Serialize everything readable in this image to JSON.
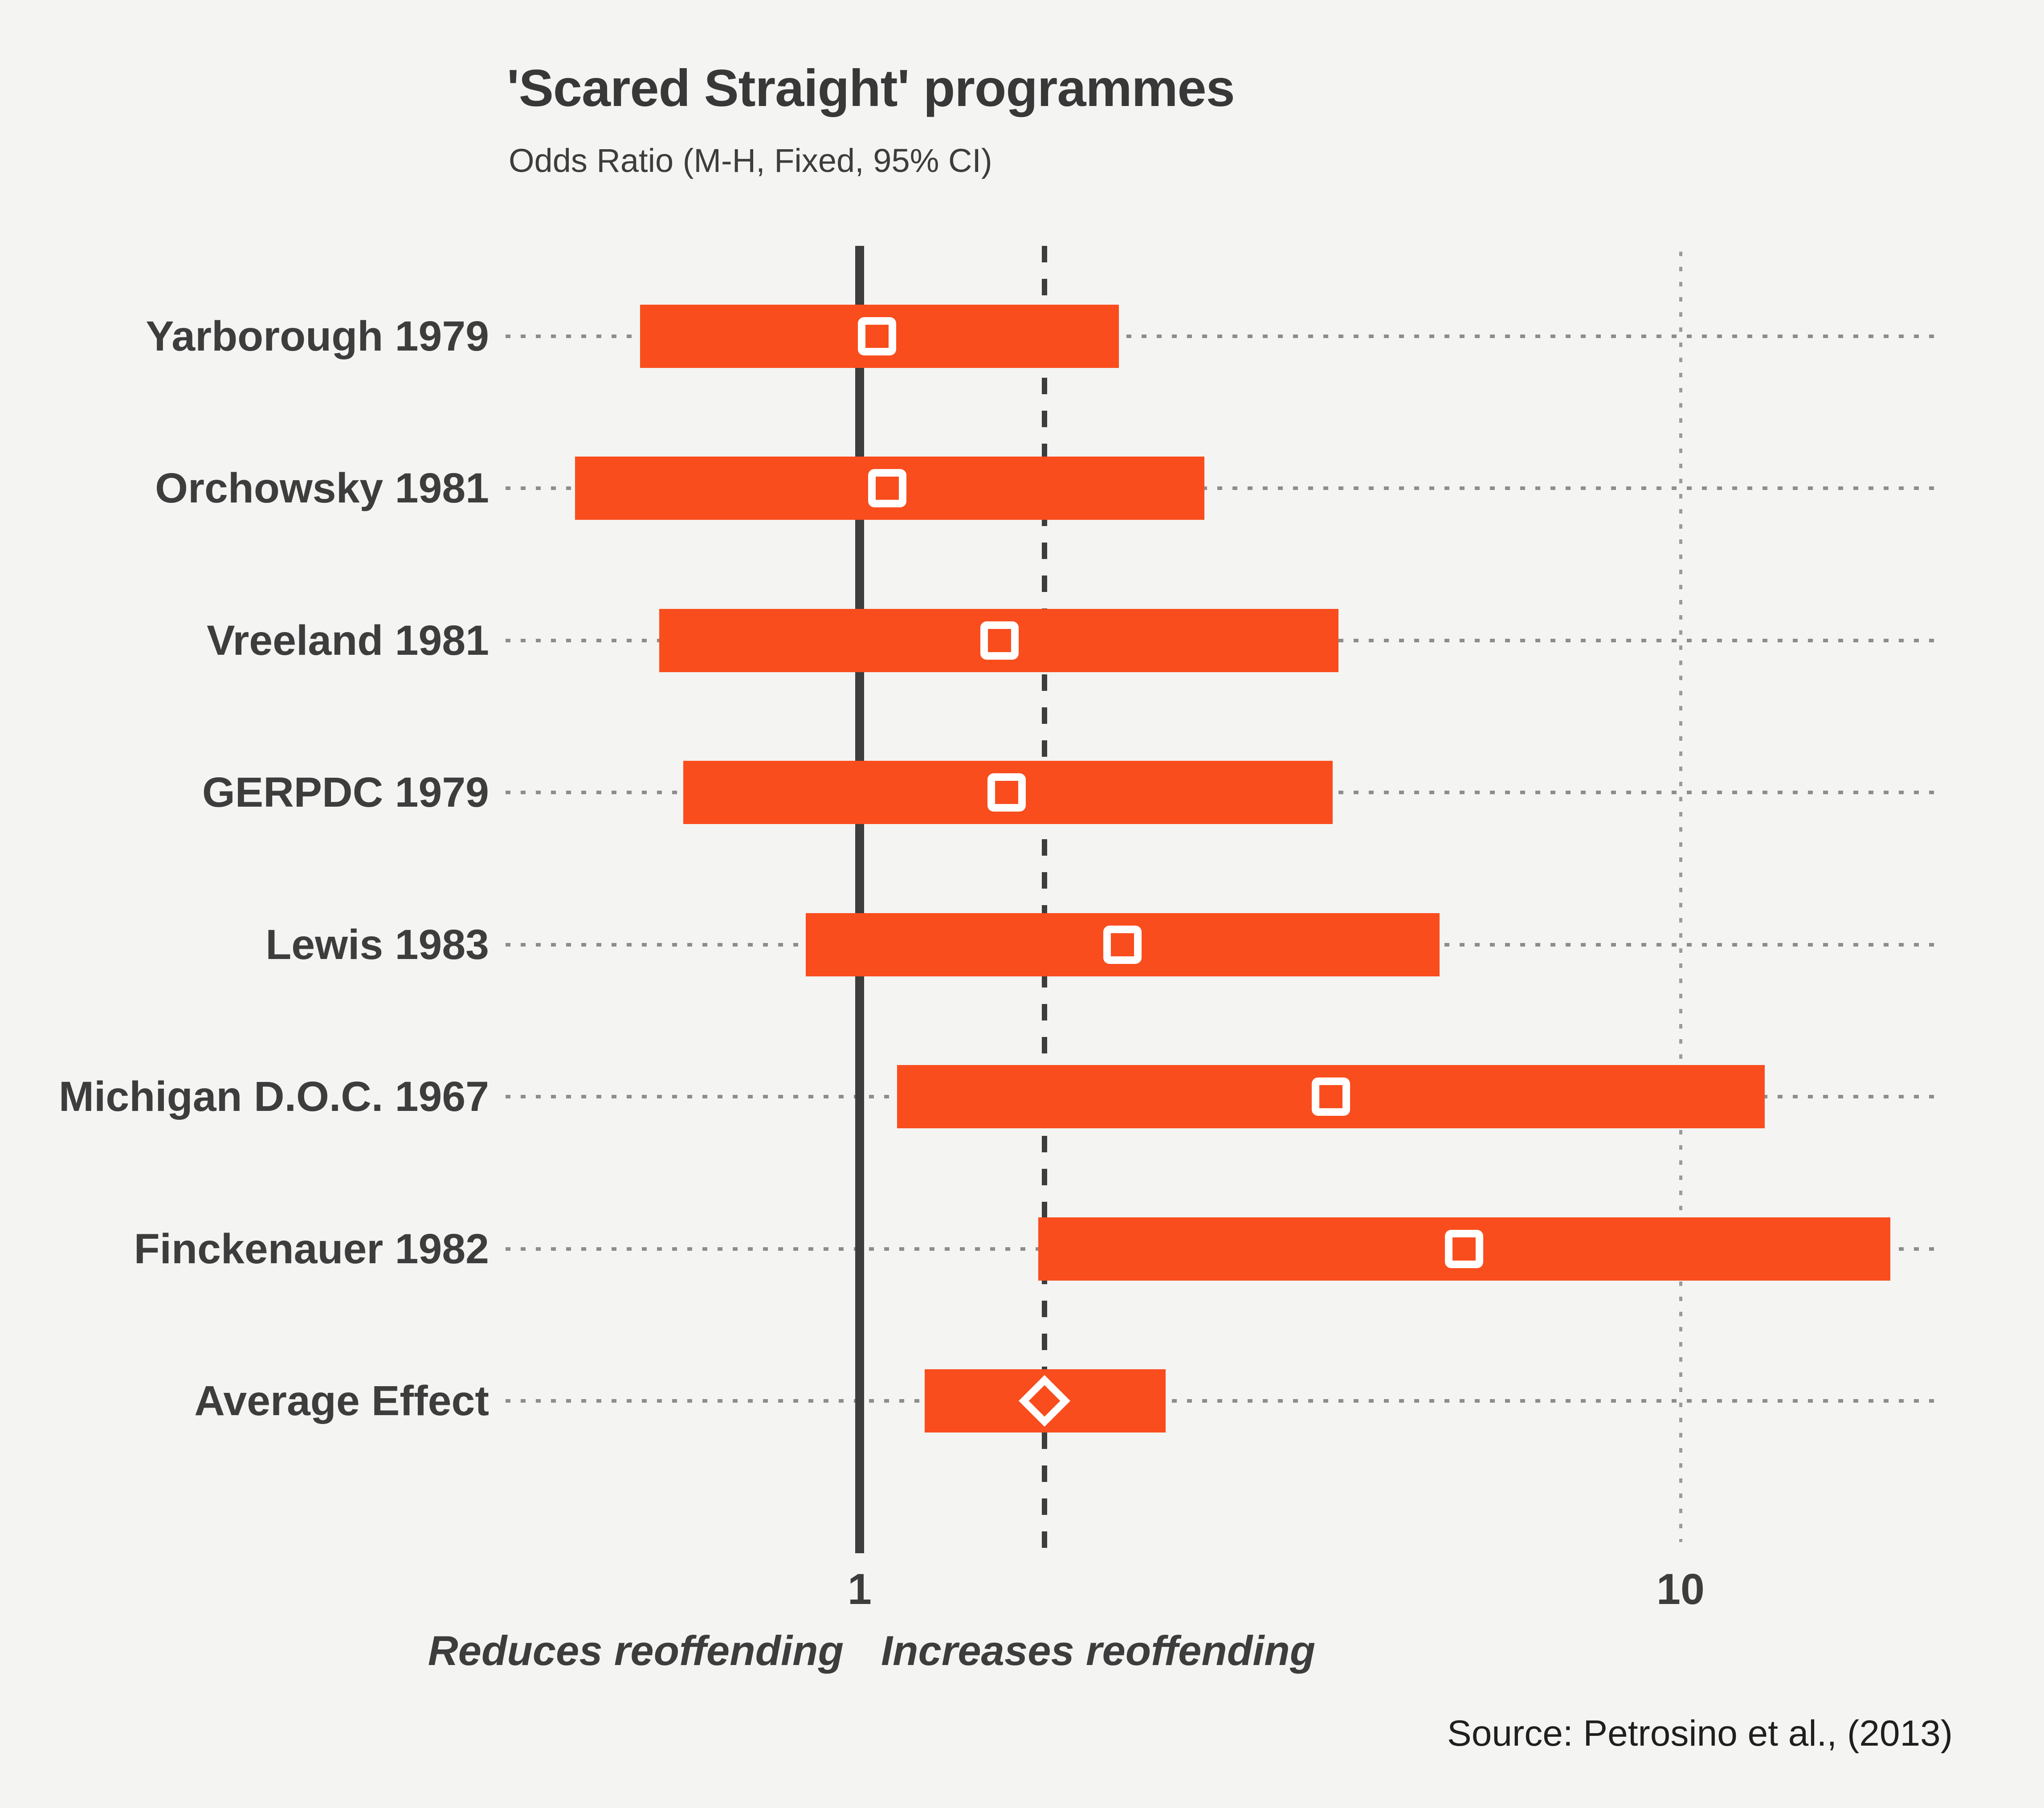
{
  "title": "'Scared Straight' programmes",
  "subtitle": "Odds Ratio (M-H, Fixed, 95% CI)",
  "source": "Source: Petrosino et al., (2013)",
  "axis": {
    "scale": "log",
    "ticks": [
      "1",
      "10"
    ],
    "tick_values": [
      1,
      10
    ],
    "reference_line_at": 1,
    "dotted_gridline_at": 10,
    "dashed_line_at_average": true,
    "left_annotation": "Reduces reoffending",
    "right_annotation": "Increases reoffending"
  },
  "chart_data": {
    "type": "forest",
    "title": "'Scared Straight' programmes",
    "subtitle": "Odds Ratio (M-H, Fixed, 95% CI)",
    "x_scale": "log",
    "x_ticks": [
      1,
      10
    ],
    "studies": [
      {
        "label": "Yarborough 1979",
        "or": 1.05,
        "ci_low": 0.54,
        "ci_high": 2.07,
        "marker": "square"
      },
      {
        "label": "Orchowsky 1981",
        "or": 1.08,
        "ci_low": 0.45,
        "ci_high": 2.63,
        "marker": "square"
      },
      {
        "label": "Vreeland 1981",
        "or": 1.48,
        "ci_low": 0.57,
        "ci_high": 3.83,
        "marker": "square"
      },
      {
        "label": "GERPDC 1979",
        "or": 1.51,
        "ci_low": 0.61,
        "ci_high": 3.77,
        "marker": "square"
      },
      {
        "label": "Lewis 1983",
        "or": 2.09,
        "ci_low": 0.86,
        "ci_high": 5.09,
        "marker": "square"
      },
      {
        "label": "Michigan D.O.C. 1967",
        "or": 3.75,
        "ci_low": 1.11,
        "ci_high": 12.67,
        "marker": "square"
      },
      {
        "label": "Finckenauer 1982",
        "or": 5.45,
        "ci_low": 1.65,
        "ci_high": 18.01,
        "marker": "square"
      },
      {
        "label": "Average Effect",
        "or": 1.68,
        "ci_low": 1.2,
        "ci_high": 2.36,
        "marker": "diamond"
      }
    ],
    "colors": {
      "bar": "#f94d1e",
      "background": "#f4f4f2",
      "text": "#3d3d3d",
      "reference_line": "#3d3d3d",
      "leader_dots": "#8d8d8d",
      "gridline": "#9a9a9a",
      "marker": "#ffffff"
    }
  }
}
